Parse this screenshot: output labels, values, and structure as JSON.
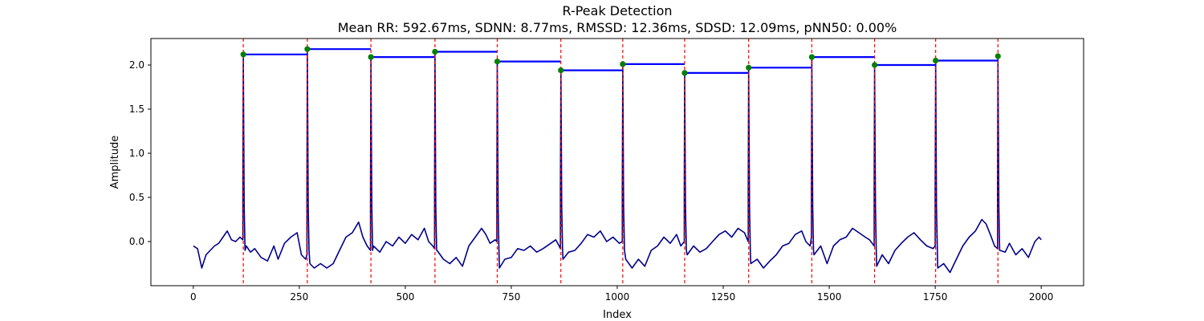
{
  "chart_data": {
    "type": "line",
    "title": "R-Peak Detection",
    "subtitle": "Mean RR: 592.67ms, SDNN: 8.77ms, RMSSD: 12.36ms, SDSD: 12.09ms, pNN50: 0.00%",
    "xlabel": "Index",
    "ylabel": "Amplitude",
    "xlim": [
      -100,
      2100
    ],
    "ylim": [
      -0.5,
      2.3
    ],
    "xticks": [
      0,
      250,
      500,
      750,
      1000,
      1250,
      1500,
      1750,
      2000
    ],
    "yticks": [
      0.0,
      0.5,
      1.0,
      1.5,
      2.0
    ],
    "grid": false,
    "colors": {
      "signal": "#00008b",
      "peaks": "#008000",
      "rr": "#0000ff",
      "vlines": "#ff0000"
    },
    "signal": {
      "length": 2000,
      "baseline_segments": [
        [
          [
            0,
            -0.05
          ],
          [
            10,
            -0.08
          ],
          [
            20,
            -0.3
          ],
          [
            30,
            -0.15
          ],
          [
            40,
            -0.1
          ],
          [
            50,
            -0.05
          ],
          [
            60,
            -0.02
          ],
          [
            70,
            0.05
          ],
          [
            80,
            0.12
          ],
          [
            90,
            0.02
          ],
          [
            100,
            0.0
          ],
          [
            110,
            0.05
          ],
          [
            117,
            0.02
          ]
        ],
        [
          [
            125,
            -0.05
          ],
          [
            135,
            -0.12
          ],
          [
            145,
            -0.08
          ],
          [
            160,
            -0.18
          ],
          [
            175,
            -0.22
          ],
          [
            190,
            -0.05
          ],
          [
            200,
            -0.2
          ],
          [
            215,
            -0.02
          ],
          [
            230,
            0.05
          ],
          [
            245,
            0.1
          ],
          [
            255,
            -0.15
          ],
          [
            265,
            -0.2
          ],
          [
            268,
            -0.15
          ]
        ],
        [
          [
            275,
            -0.25
          ],
          [
            285,
            -0.3
          ],
          [
            300,
            -0.25
          ],
          [
            315,
            -0.3
          ],
          [
            330,
            -0.25
          ],
          [
            345,
            -0.1
          ],
          [
            360,
            0.05
          ],
          [
            375,
            0.1
          ],
          [
            390,
            0.22
          ],
          [
            400,
            0.05
          ],
          [
            410,
            -0.05
          ],
          [
            418,
            -0.1
          ]
        ],
        [
          [
            425,
            -0.05
          ],
          [
            440,
            -0.12
          ],
          [
            455,
            0.0
          ],
          [
            470,
            -0.05
          ],
          [
            485,
            0.05
          ],
          [
            500,
            -0.02
          ],
          [
            515,
            0.08
          ],
          [
            530,
            0.02
          ],
          [
            545,
            0.15
          ],
          [
            555,
            0.0
          ],
          [
            565,
            -0.05
          ],
          [
            569,
            -0.08
          ]
        ],
        [
          [
            575,
            -0.1
          ],
          [
            590,
            -0.2
          ],
          [
            605,
            -0.25
          ],
          [
            620,
            -0.18
          ],
          [
            635,
            -0.28
          ],
          [
            650,
            -0.05
          ],
          [
            665,
            0.05
          ],
          [
            680,
            0.15
          ],
          [
            690,
            0.08
          ],
          [
            700,
            -0.02
          ],
          [
            712,
            0.02
          ],
          [
            716,
            0.0
          ]
        ],
        [
          [
            722,
            -0.3
          ],
          [
            735,
            -0.2
          ],
          [
            750,
            -0.18
          ],
          [
            765,
            -0.08
          ],
          [
            780,
            -0.1
          ],
          [
            795,
            -0.05
          ],
          [
            810,
            -0.12
          ],
          [
            825,
            -0.08
          ],
          [
            840,
            -0.03
          ],
          [
            855,
            0.02
          ],
          [
            863,
            -0.05
          ],
          [
            866,
            -0.08
          ]
        ],
        [
          [
            872,
            -0.2
          ],
          [
            885,
            -0.12
          ],
          [
            900,
            -0.1
          ],
          [
            915,
            -0.02
          ],
          [
            930,
            0.08
          ],
          [
            945,
            0.05
          ],
          [
            960,
            0.12
          ],
          [
            975,
            0.0
          ],
          [
            990,
            0.05
          ],
          [
            1005,
            -0.02
          ],
          [
            1012,
            0.0
          ]
        ],
        [
          [
            1020,
            -0.2
          ],
          [
            1035,
            -0.3
          ],
          [
            1050,
            -0.2
          ],
          [
            1065,
            -0.28
          ],
          [
            1080,
            -0.1
          ],
          [
            1095,
            -0.05
          ],
          [
            1110,
            0.05
          ],
          [
            1125,
            -0.02
          ],
          [
            1140,
            0.08
          ],
          [
            1150,
            -0.05
          ],
          [
            1158,
            0.0
          ]
        ],
        [
          [
            1165,
            -0.15
          ],
          [
            1180,
            -0.05
          ],
          [
            1195,
            -0.12
          ],
          [
            1210,
            -0.08
          ],
          [
            1225,
            0.0
          ],
          [
            1240,
            0.08
          ],
          [
            1255,
            0.12
          ],
          [
            1270,
            0.05
          ],
          [
            1285,
            0.15
          ],
          [
            1300,
            0.1
          ],
          [
            1309,
            0.0
          ]
        ],
        [
          [
            1315,
            -0.25
          ],
          [
            1330,
            -0.2
          ],
          [
            1345,
            -0.3
          ],
          [
            1360,
            -0.22
          ],
          [
            1375,
            -0.15
          ],
          [
            1390,
            -0.05
          ],
          [
            1405,
            -0.02
          ],
          [
            1420,
            0.08
          ],
          [
            1435,
            0.12
          ],
          [
            1445,
            0.0
          ],
          [
            1455,
            -0.05
          ],
          [
            1458,
            0.05
          ]
        ],
        [
          [
            1464,
            -0.15
          ],
          [
            1480,
            -0.05
          ],
          [
            1495,
            -0.25
          ],
          [
            1510,
            -0.05
          ],
          [
            1525,
            0.02
          ],
          [
            1540,
            0.05
          ],
          [
            1555,
            0.15
          ],
          [
            1570,
            0.1
          ],
          [
            1585,
            0.05
          ],
          [
            1595,
            0.02
          ],
          [
            1606,
            -0.05
          ]
        ],
        [
          [
            1612,
            -0.28
          ],
          [
            1625,
            -0.15
          ],
          [
            1640,
            -0.25
          ],
          [
            1655,
            -0.1
          ],
          [
            1670,
            -0.02
          ],
          [
            1685,
            0.05
          ],
          [
            1700,
            0.1
          ],
          [
            1715,
            0.02
          ],
          [
            1730,
            -0.05
          ],
          [
            1745,
            -0.08
          ],
          [
            1750,
            -0.05
          ]
        ],
        [
          [
            1756,
            -0.3
          ],
          [
            1770,
            -0.25
          ],
          [
            1785,
            -0.35
          ],
          [
            1800,
            -0.2
          ],
          [
            1815,
            -0.05
          ],
          [
            1830,
            0.05
          ],
          [
            1845,
            0.12
          ],
          [
            1860,
            0.25
          ],
          [
            1870,
            0.2
          ],
          [
            1880,
            0.08
          ],
          [
            1890,
            -0.05
          ],
          [
            1897,
            -0.08
          ]
        ],
        [
          [
            1903,
            -0.1
          ],
          [
            1915,
            -0.12
          ],
          [
            1925,
            -0.02
          ],
          [
            1940,
            -0.15
          ],
          [
            1955,
            -0.08
          ],
          [
            1970,
            -0.18
          ],
          [
            1985,
            0.0
          ],
          [
            1995,
            0.05
          ],
          [
            2000,
            0.02
          ]
        ]
      ]
    },
    "peaks": [
      {
        "x": 118,
        "y": 2.12
      },
      {
        "x": 269,
        "y": 2.18
      },
      {
        "x": 419,
        "y": 2.09
      },
      {
        "x": 570,
        "y": 2.15
      },
      {
        "x": 717,
        "y": 2.04
      },
      {
        "x": 867,
        "y": 1.94
      },
      {
        "x": 1013,
        "y": 2.01
      },
      {
        "x": 1159,
        "y": 1.91
      },
      {
        "x": 1310,
        "y": 1.97
      },
      {
        "x": 1459,
        "y": 2.09
      },
      {
        "x": 1607,
        "y": 2.0
      },
      {
        "x": 1751,
        "y": 2.05
      },
      {
        "x": 1898,
        "y": 2.1
      }
    ]
  }
}
